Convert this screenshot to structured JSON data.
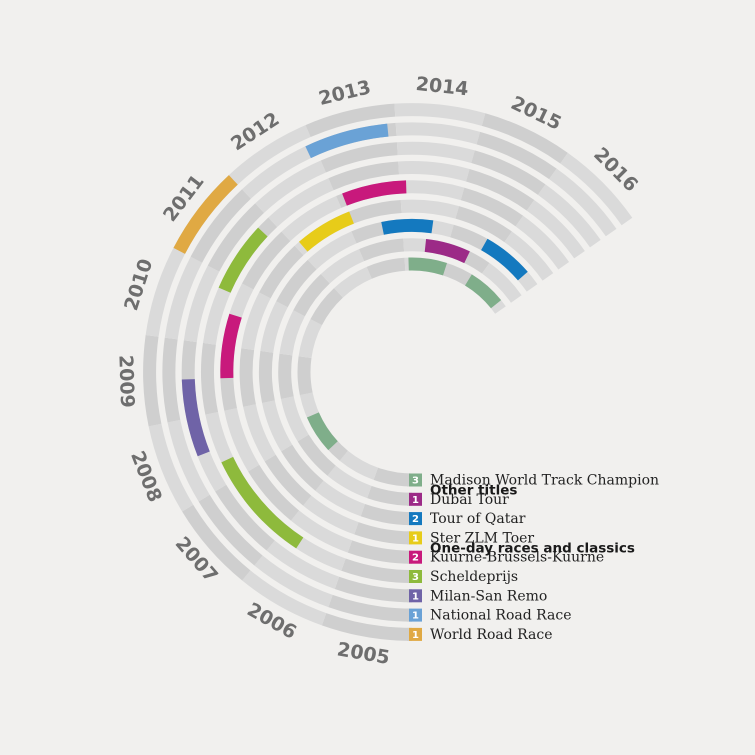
{
  "chart_data": {
    "type": "radial-bar",
    "year_range": [
      2005,
      2016
    ],
    "years": [
      "2005",
      "2006",
      "2007",
      "2008",
      "2009",
      "2010",
      "2011",
      "2012",
      "2013",
      "2014",
      "2015",
      "2016"
    ],
    "track_color": "#cfcfcf",
    "track_alt_color": "#dadada",
    "headings": [
      {
        "label": "Other titles",
        "after_index": 0
      },
      {
        "label": "One-day races and classics",
        "after_index": 3
      }
    ],
    "series": [
      {
        "name": "Madison World Track Champion",
        "count": "3",
        "color": "#7fae8a",
        "wins": [
          2007.9,
          2014.6,
          2016.3
        ]
      },
      {
        "name": "Dubai Tour",
        "count": "1",
        "color": "#9c2a87",
        "wins": [
          2015.0
        ]
      },
      {
        "name": "Tour of Qatar",
        "count": "2",
        "color": "#1479bf",
        "wins": [
          2014.1,
          2016.2
        ]
      },
      {
        "name": "Ster ZLM Toer",
        "count": "1",
        "color": "#e7cc19",
        "wins": [
          2012.6
        ]
      },
      {
        "name": "Kuurne-Brussels-Kuurne",
        "count": "2",
        "color": "#c8197c",
        "wins": [
          2010.0,
          2013.6
        ]
      },
      {
        "name": "Scheldeprijs",
        "count": "3",
        "color": "#8eba3c",
        "wins": [
          2007.2,
          2007.8,
          2011.3
        ]
      },
      {
        "name": "Milan-San Remo",
        "count": "1",
        "color": "#6f63a7",
        "wins": [
          2009.0
        ]
      },
      {
        "name": "National Road Race",
        "count": "1",
        "color": "#6aa2d6",
        "wins": [
          2013.4
        ]
      },
      {
        "name": "World Road Race",
        "count": "1",
        "color": "#e0a943",
        "wins": [
          2011.5
        ]
      }
    ]
  }
}
